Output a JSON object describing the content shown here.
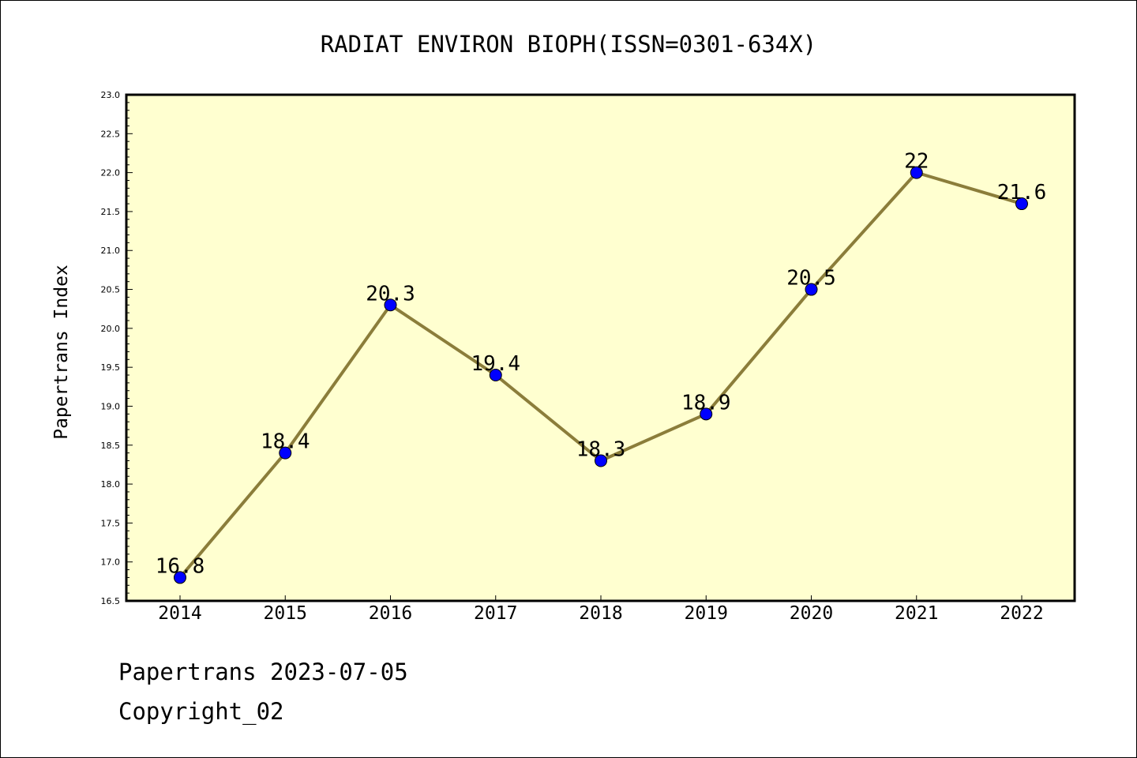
{
  "chart_data": {
    "type": "line",
    "title": "RADIAT ENVIRON BIOPH(ISSN=0301-634X)",
    "xlabel": "",
    "ylabel": "Papertrans Index",
    "categories": [
      "2014",
      "2015",
      "2016",
      "2017",
      "2018",
      "2019",
      "2020",
      "2021",
      "2022"
    ],
    "series": [
      {
        "values": [
          16.8,
          18.4,
          20.3,
          19.4,
          18.3,
          18.9,
          20.5,
          22,
          21.6
        ],
        "labels": [
          "16.8",
          "18.4",
          "20.3",
          "19.4",
          "18.3",
          "18.9",
          "20.5",
          "22",
          "21.6"
        ]
      }
    ],
    "ylim": [
      16.5,
      23.0
    ],
    "yticks": [
      "16.5",
      "17.0",
      "17.5",
      "18.0",
      "18.5",
      "19.0",
      "19.5",
      "20.0",
      "20.5",
      "21.0",
      "21.5",
      "22.0",
      "22.5",
      "23.0"
    ],
    "grid": false,
    "colors": {
      "plot_background": "#ffffd0",
      "line": "#8b7d3a",
      "marker": "#0000ff"
    }
  },
  "footer": {
    "line1": "Papertrans 2023-07-05",
    "line2": "Copyright_02"
  }
}
